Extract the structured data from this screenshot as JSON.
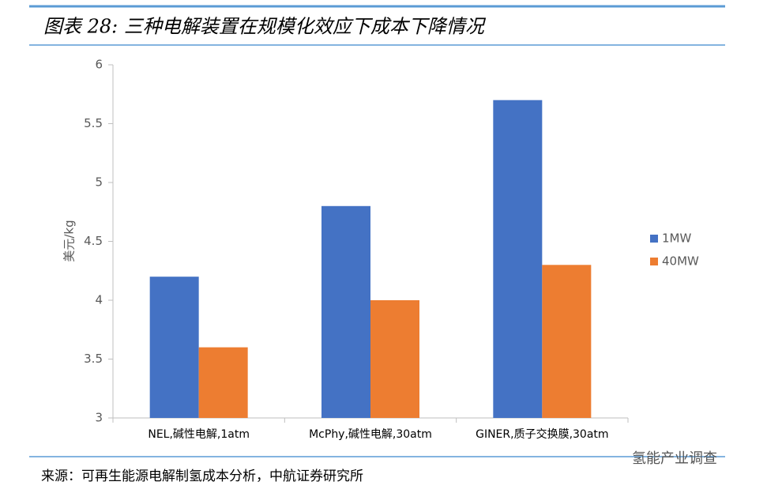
{
  "chart_data": {
    "type": "bar",
    "title": "图表 28: 三种电解装置在规模化效应下成本下降情况",
    "y_label": "美元/kg",
    "categories": [
      "NEL,碱性电解,1atm",
      "McPhy,碱性电解,30atm",
      "GINER,质子交换膜,30atm"
    ],
    "series": [
      {
        "name": "1MW",
        "color": "#4472c4",
        "values": [
          4.2,
          4.8,
          5.7
        ]
      },
      {
        "name": "40MW",
        "color": "#ed7d31",
        "values": [
          3.6,
          4.0,
          4.3
        ]
      }
    ],
    "ylim": [
      3,
      6
    ],
    "yticks": [
      3,
      3.5,
      4,
      4.5,
      5,
      5.5,
      6
    ],
    "grid": false,
    "legend": "right",
    "source": "来源：可再生能源电解制氢成本分析，中航证券研究所",
    "watermark": "氢能产业调查"
  }
}
